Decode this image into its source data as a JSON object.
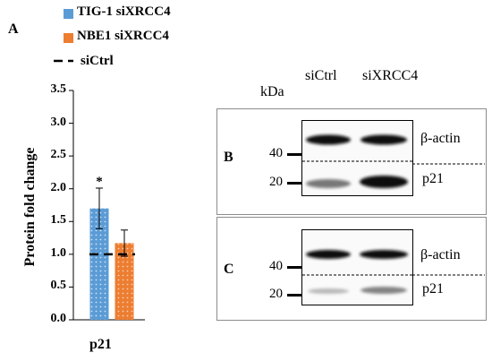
{
  "chart_data": {
    "panel_letter": "A",
    "type": "bar",
    "categories": [
      "p21"
    ],
    "series": [
      {
        "name": "TIG-1 siXRCC4",
        "values": [
          1.7
        ],
        "error": [
          0.31
        ],
        "color": "#5b9bd5",
        "significance": "*"
      },
      {
        "name": "NBE1 siXRCC4",
        "values": [
          1.17
        ],
        "error": [
          0.2
        ],
        "color": "#ed7d31",
        "significance": ""
      }
    ],
    "reference_line": {
      "name": "siCtrl",
      "value": 1.0,
      "style": "dashed"
    },
    "ylabel": "Protein fold change",
    "xlabel": "",
    "ylim": [
      0,
      3.5
    ],
    "yticks": [
      "0.0",
      "0.5",
      "1.0",
      "1.5",
      "2.0",
      "2.5",
      "3.0",
      "3.5"
    ],
    "legend_position": "top-left"
  },
  "blot": {
    "unit_label": "kDa",
    "lanes": [
      "siCtrl",
      "siXRCC4"
    ],
    "panels": [
      {
        "letter": "B",
        "marker_top": "40",
        "marker_bottom": "20",
        "band_top": "β-actin",
        "band_bottom": "p21",
        "p21_intensity": [
          0.55,
          1.0
        ]
      },
      {
        "letter": "C",
        "marker_top": "40",
        "marker_bottom": "20",
        "band_top": "β-actin",
        "band_bottom": "p21",
        "p21_intensity": [
          0.3,
          0.55
        ]
      }
    ]
  }
}
